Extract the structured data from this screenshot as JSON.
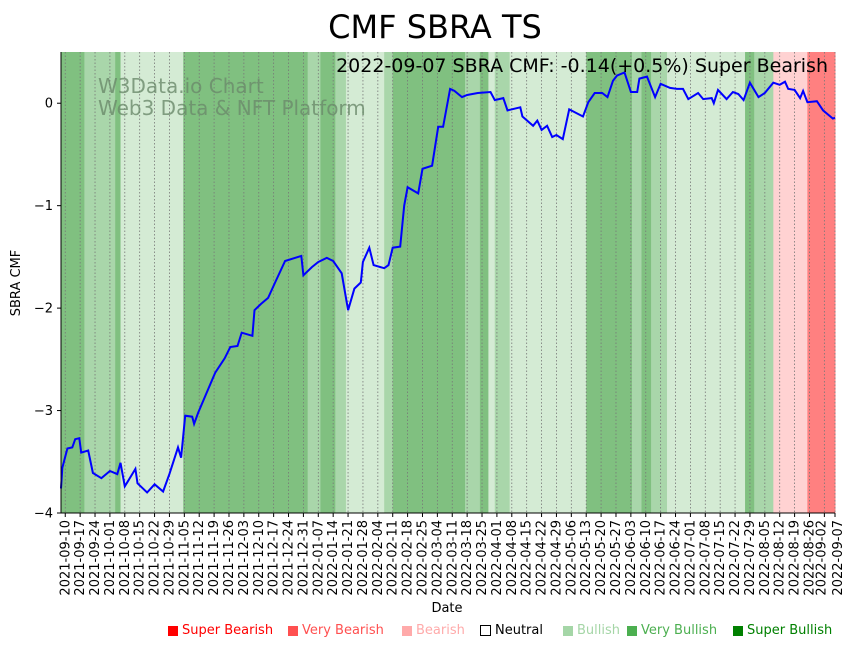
{
  "chart_data": {
    "type": "line",
    "title": "CMF SBRA TS",
    "annotation": "2022-09-07 SBRA CMF: -0.14(+0.5%) Super Bearish",
    "watermark": [
      "W3Data.io Chart",
      "Web3 Data & NFT Platform"
    ],
    "xlabel": "Date",
    "ylabel": "SBRA CMF",
    "ylim": [
      -4.0,
      0.5
    ],
    "xlim_days_from_start": [
      -2,
      362
    ],
    "x_origin_date": "2021-09-10",
    "yticks": [
      0,
      -1,
      -2,
      -3,
      -4
    ],
    "ytick_labels": [
      "0",
      "−1",
      "−2",
      "−3",
      "−4"
    ],
    "xtick_labels": [
      "2021-09-10",
      "2021-09-17",
      "2021-09-24",
      "2021-10-01",
      "2021-10-08",
      "2021-10-15",
      "2021-10-22",
      "2021-10-29",
      "2021-11-05",
      "2021-11-12",
      "2021-11-19",
      "2021-11-26",
      "2021-12-03",
      "2021-12-10",
      "2021-12-17",
      "2021-12-24",
      "2021-12-31",
      "2022-01-07",
      "2022-01-14",
      "2022-01-21",
      "2022-01-28",
      "2022-02-04",
      "2022-02-11",
      "2022-02-18",
      "2022-02-25",
      "2022-03-04",
      "2022-03-11",
      "2022-03-18",
      "2022-03-25",
      "2022-04-01",
      "2022-04-08",
      "2022-04-15",
      "2022-04-22",
      "2022-04-29",
      "2022-05-06",
      "2022-05-13",
      "2022-05-20",
      "2022-05-27",
      "2022-06-03",
      "2022-06-10",
      "2022-06-17",
      "2022-06-24",
      "2022-07-01",
      "2022-07-08",
      "2022-07-15",
      "2022-07-22",
      "2022-07-29",
      "2022-08-05",
      "2022-08-12",
      "2022-08-19",
      "2022-08-26",
      "2022-09-02",
      "2022-09-07"
    ],
    "xtick_days": [
      0,
      7,
      14,
      21,
      28,
      35,
      42,
      49,
      56,
      63,
      70,
      77,
      84,
      91,
      98,
      105,
      112,
      119,
      126,
      133,
      140,
      147,
      154,
      161,
      168,
      175,
      182,
      189,
      196,
      203,
      210,
      217,
      224,
      231,
      238,
      245,
      252,
      259,
      266,
      273,
      280,
      287,
      294,
      301,
      308,
      315,
      322,
      329,
      336,
      343,
      350,
      357,
      362
    ],
    "series": [
      {
        "name": "SBRA CMF",
        "color": "#0000ff",
        "points": [
          [
            -2,
            -3.76
          ],
          [
            -1.4,
            -3.56
          ],
          [
            1,
            -3.37
          ],
          [
            3.3,
            -3.36
          ],
          [
            4.7,
            -3.28
          ],
          [
            6.6,
            -3.27
          ],
          [
            7.5,
            -3.41
          ],
          [
            10.8,
            -3.39
          ],
          [
            13,
            -3.61
          ],
          [
            17,
            -3.66
          ],
          [
            21,
            -3.59
          ],
          [
            24.5,
            -3.62
          ],
          [
            26,
            -3.51
          ],
          [
            28,
            -3.74
          ],
          [
            33,
            -3.57
          ],
          [
            34,
            -3.71
          ],
          [
            38.5,
            -3.8
          ],
          [
            42,
            -3.72
          ],
          [
            46,
            -3.79
          ],
          [
            49,
            -3.62
          ],
          [
            53,
            -3.36
          ],
          [
            54.5,
            -3.46
          ],
          [
            56.4,
            -3.05
          ],
          [
            59.7,
            -3.06
          ],
          [
            60.6,
            -3.13
          ],
          [
            62.5,
            -3.02
          ],
          [
            70.5,
            -2.63
          ],
          [
            75,
            -2.49
          ],
          [
            77.6,
            -2.38
          ],
          [
            81,
            -2.37
          ],
          [
            83,
            -2.24
          ],
          [
            88,
            -2.27
          ],
          [
            89,
            -2.02
          ],
          [
            92,
            -1.96
          ],
          [
            95.4,
            -1.9
          ],
          [
            98.7,
            -1.75
          ],
          [
            103.4,
            -1.54
          ],
          [
            108,
            -1.51
          ],
          [
            111,
            -1.49
          ],
          [
            112,
            -1.68
          ],
          [
            116,
            -1.6
          ],
          [
            119,
            -1.55
          ],
          [
            123,
            -1.51
          ],
          [
            126,
            -1.54
          ],
          [
            130,
            -1.66
          ],
          [
            133,
            -2.02
          ],
          [
            136,
            -1.81
          ],
          [
            139,
            -1.75
          ],
          [
            140,
            -1.55
          ],
          [
            143,
            -1.41
          ],
          [
            145,
            -1.58
          ],
          [
            150,
            -1.61
          ],
          [
            152,
            -1.58
          ],
          [
            154,
            -1.41
          ],
          [
            157.5,
            -1.4
          ],
          [
            159.4,
            -1.0
          ],
          [
            161,
            -0.82
          ],
          [
            166,
            -0.88
          ],
          [
            168,
            -0.64
          ],
          [
            172.5,
            -0.61
          ],
          [
            175.4,
            -0.23
          ],
          [
            177.7,
            -0.23
          ],
          [
            181,
            0.14
          ],
          [
            183,
            0.12
          ],
          [
            186.6,
            0.06
          ],
          [
            189,
            0.08
          ],
          [
            194,
            0.1
          ],
          [
            200,
            0.11
          ],
          [
            202,
            0.03
          ],
          [
            206,
            0.05
          ],
          [
            208,
            -0.07
          ],
          [
            214,
            -0.04
          ],
          [
            215,
            -0.13
          ],
          [
            220,
            -0.22
          ],
          [
            222,
            -0.17
          ],
          [
            224,
            -0.26
          ],
          [
            226.6,
            -0.22
          ],
          [
            229,
            -0.33
          ],
          [
            231,
            -0.31
          ],
          [
            234,
            -0.35
          ],
          [
            237,
            -0.06
          ],
          [
            243.5,
            -0.13
          ],
          [
            246,
            0.01
          ],
          [
            249,
            0.1
          ],
          [
            252.5,
            0.1
          ],
          [
            255,
            0.06
          ],
          [
            257.6,
            0.22
          ],
          [
            259.5,
            0.27
          ],
          [
            263,
            0.3
          ],
          [
            266,
            0.11
          ],
          [
            269,
            0.11
          ],
          [
            270,
            0.24
          ],
          [
            273.6,
            0.26
          ],
          [
            277.4,
            0.06
          ],
          [
            280,
            0.19
          ],
          [
            284.4,
            0.15
          ],
          [
            287.7,
            0.14
          ],
          [
            290.5,
            0.14
          ],
          [
            293,
            0.04
          ],
          [
            297.6,
            0.1
          ],
          [
            300,
            0.04
          ],
          [
            304,
            0.05
          ],
          [
            305,
            0.0
          ],
          [
            307,
            0.13
          ],
          [
            311,
            0.04
          ],
          [
            314,
            0.11
          ],
          [
            316.5,
            0.09
          ],
          [
            319,
            0.03
          ],
          [
            322,
            0.2
          ],
          [
            326,
            0.06
          ],
          [
            329,
            0.1
          ],
          [
            333,
            0.2
          ],
          [
            336,
            0.18
          ],
          [
            338.5,
            0.21
          ],
          [
            340,
            0.14
          ],
          [
            343,
            0.13
          ],
          [
            345.6,
            0.05
          ],
          [
            347,
            0.12
          ],
          [
            349,
            0.01
          ],
          [
            353.5,
            0.02
          ],
          [
            356.4,
            -0.07
          ],
          [
            361,
            -0.15
          ],
          [
            362,
            -0.14
          ]
        ]
      }
    ],
    "bands": [
      [
        -2,
        9,
        "Super Bullish"
      ],
      [
        9,
        23.5,
        "Very Bullish"
      ],
      [
        23.5,
        26,
        "Super Bullish"
      ],
      [
        26,
        55.5,
        "Bullish"
      ],
      [
        55.5,
        114,
        "Super Bullish"
      ],
      [
        114,
        120,
        "Very Bullish"
      ],
      [
        120,
        127,
        "Super Bullish"
      ],
      [
        127,
        132,
        "Very Bullish"
      ],
      [
        132,
        150,
        "Bullish"
      ],
      [
        150,
        154,
        "Very Bullish"
      ],
      [
        154,
        188,
        "Super Bullish"
      ],
      [
        188,
        195,
        "Very Bullish"
      ],
      [
        195,
        199,
        "Super Bullish"
      ],
      [
        199,
        202,
        "Bullish"
      ],
      [
        202,
        209,
        "Very Bullish"
      ],
      [
        209,
        245,
        "Bullish"
      ],
      [
        245,
        266.5,
        "Super Bullish"
      ],
      [
        266.5,
        271,
        "Very Bullish"
      ],
      [
        271,
        275.5,
        "Super Bullish"
      ],
      [
        275.5,
        283,
        "Very Bullish"
      ],
      [
        283,
        319.7,
        "Bullish"
      ],
      [
        319.7,
        324,
        "Super Bullish"
      ],
      [
        324,
        333,
        "Very Bullish"
      ],
      [
        333,
        349,
        "Bearish"
      ],
      [
        349,
        362,
        "Super Bearish"
      ]
    ],
    "band_colors": {
      "Super Bullish": "#80c080",
      "Very Bullish": "#a9d6aa",
      "Bullish": "#d4ebd4",
      "Neutral": "#ffffff",
      "Bearish": "#ffd2d2",
      "Very Bearish": "#ffa8a8",
      "Super Bearish": "#ff8080"
    },
    "legend": [
      {
        "label": "Super Bearish",
        "color": "#ff0000"
      },
      {
        "label": "Very Bearish",
        "color": "#ff5050"
      },
      {
        "label": "Bearish",
        "color": "#ffaaaa"
      },
      {
        "label": "Neutral",
        "color": "#000000"
      },
      {
        "label": "Bullish",
        "color": "#a5d6a7"
      },
      {
        "label": "Very Bullish",
        "color": "#4caf50"
      },
      {
        "label": "Super Bullish",
        "color": "#008000"
      }
    ],
    "legend_placement": "bottom"
  }
}
